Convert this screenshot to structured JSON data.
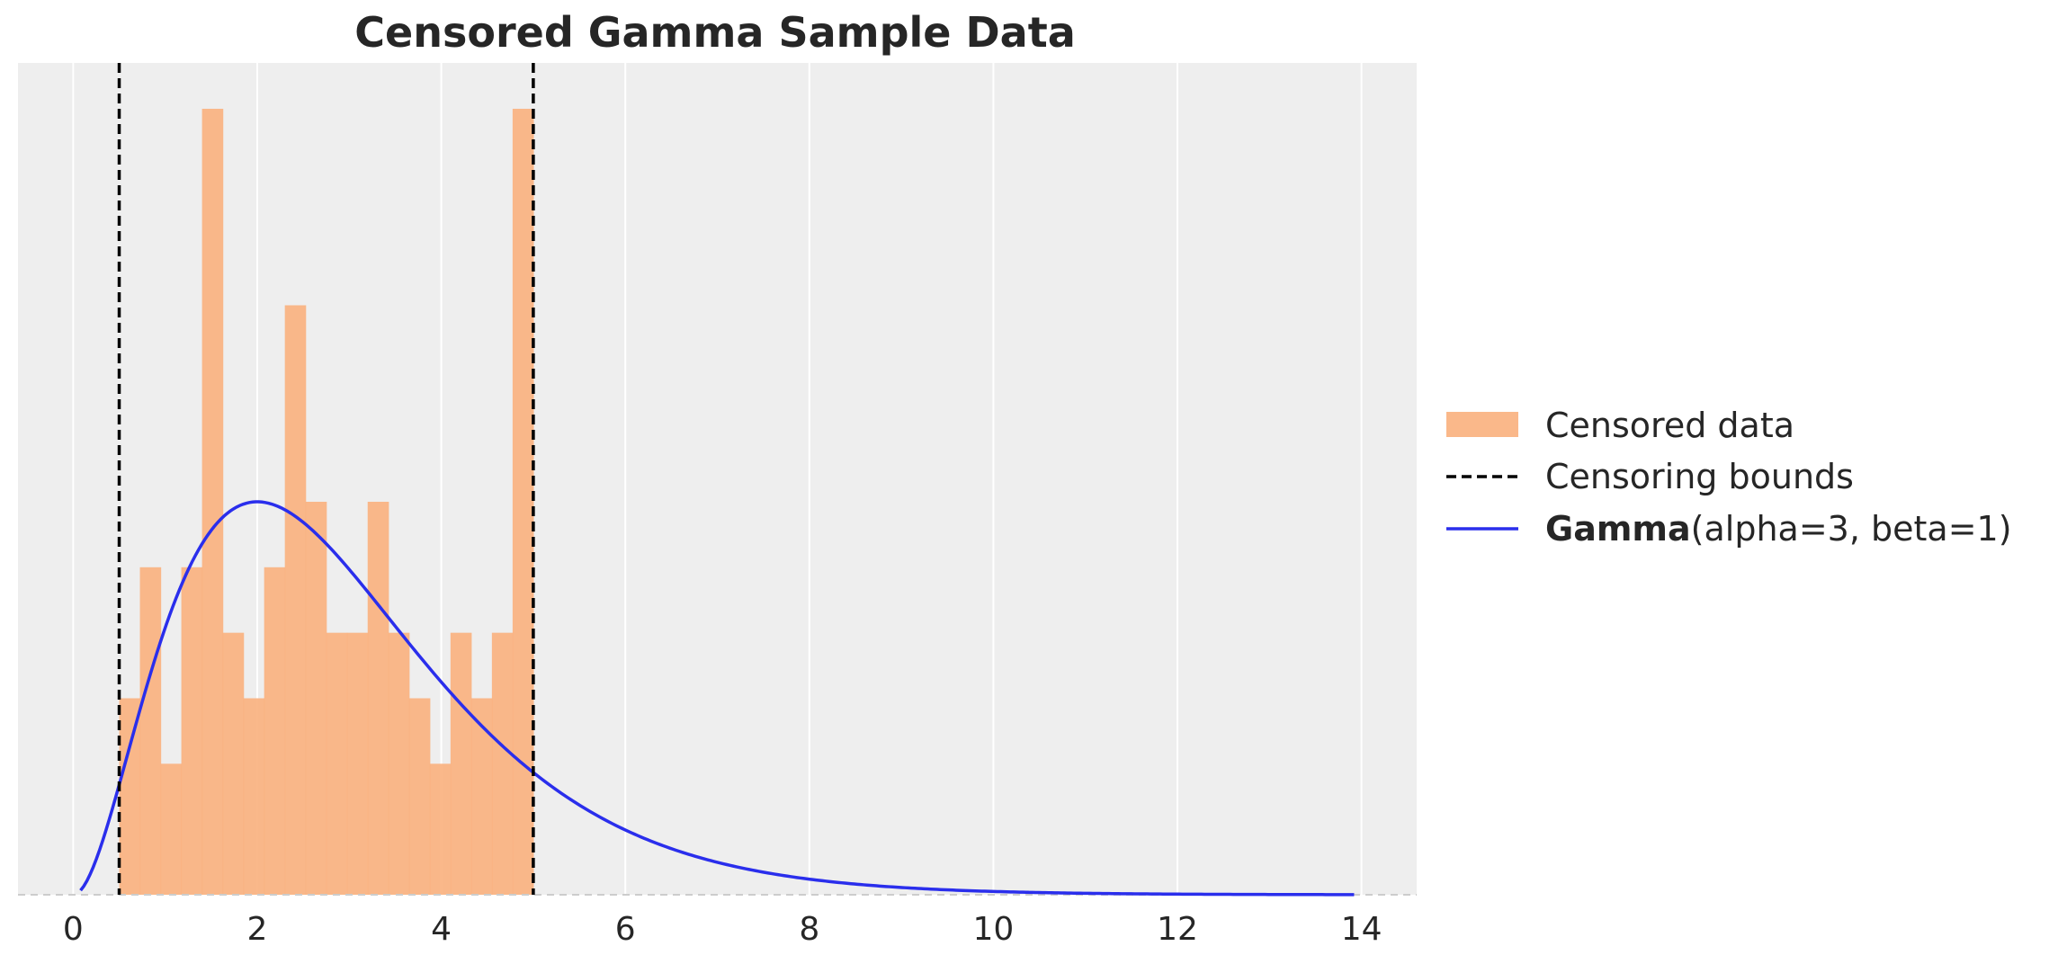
{
  "chart_data": {
    "type": "bar",
    "title": "Censored Gamma Sample Data",
    "xlabel": "",
    "ylabel": "",
    "xlim": [
      -0.6,
      14.6
    ],
    "ylim": [
      0,
      12.7
    ],
    "xticks": [
      0,
      2,
      4,
      6,
      8,
      10,
      12,
      14
    ],
    "y_ticks_visible": false,
    "grid": "vertical",
    "histogram": {
      "name": "Censored data",
      "color": "#f9b07d",
      "bin_width": 0.225,
      "bins": [
        {
          "x0": 0.5,
          "count": 3
        },
        {
          "x0": 0.725,
          "count": 5
        },
        {
          "x0": 0.95,
          "count": 2
        },
        {
          "x0": 1.175,
          "count": 5
        },
        {
          "x0": 1.4,
          "count": 12
        },
        {
          "x0": 1.625,
          "count": 4
        },
        {
          "x0": 1.85,
          "count": 3
        },
        {
          "x0": 2.075,
          "count": 5
        },
        {
          "x0": 2.3,
          "count": 9
        },
        {
          "x0": 2.525,
          "count": 6
        },
        {
          "x0": 2.75,
          "count": 4
        },
        {
          "x0": 2.975,
          "count": 4
        },
        {
          "x0": 3.2,
          "count": 6
        },
        {
          "x0": 3.425,
          "count": 4
        },
        {
          "x0": 3.65,
          "count": 3
        },
        {
          "x0": 3.875,
          "count": 2
        },
        {
          "x0": 4.1,
          "count": 4
        },
        {
          "x0": 4.325,
          "count": 3
        },
        {
          "x0": 4.55,
          "count": 4
        },
        {
          "x0": 4.775,
          "count": 12
        }
      ]
    },
    "censoring_bounds": {
      "name": "Censoring bounds",
      "color": "#000000",
      "values": [
        0.5,
        5.0
      ]
    },
    "pdf_curve": {
      "name_bold": "Gamma",
      "name_rest": "(alpha=3, beta=1)",
      "color": "#2a2eec",
      "alpha": 3,
      "beta": 1,
      "x_range": [
        0.08,
        13.92
      ],
      "y_peak": 6.0
    },
    "legend": {
      "placement": "center-right-outside",
      "entries": [
        {
          "label": "Censored data"
        },
        {
          "label": "Censoring bounds"
        },
        {
          "label_bold": "Gamma",
          "label_rest": "(alpha=3, beta=1)"
        }
      ]
    },
    "colors": {
      "plot_background": "#eeeeee",
      "grid": "#ffffff",
      "baseline": "#cccccc"
    }
  }
}
